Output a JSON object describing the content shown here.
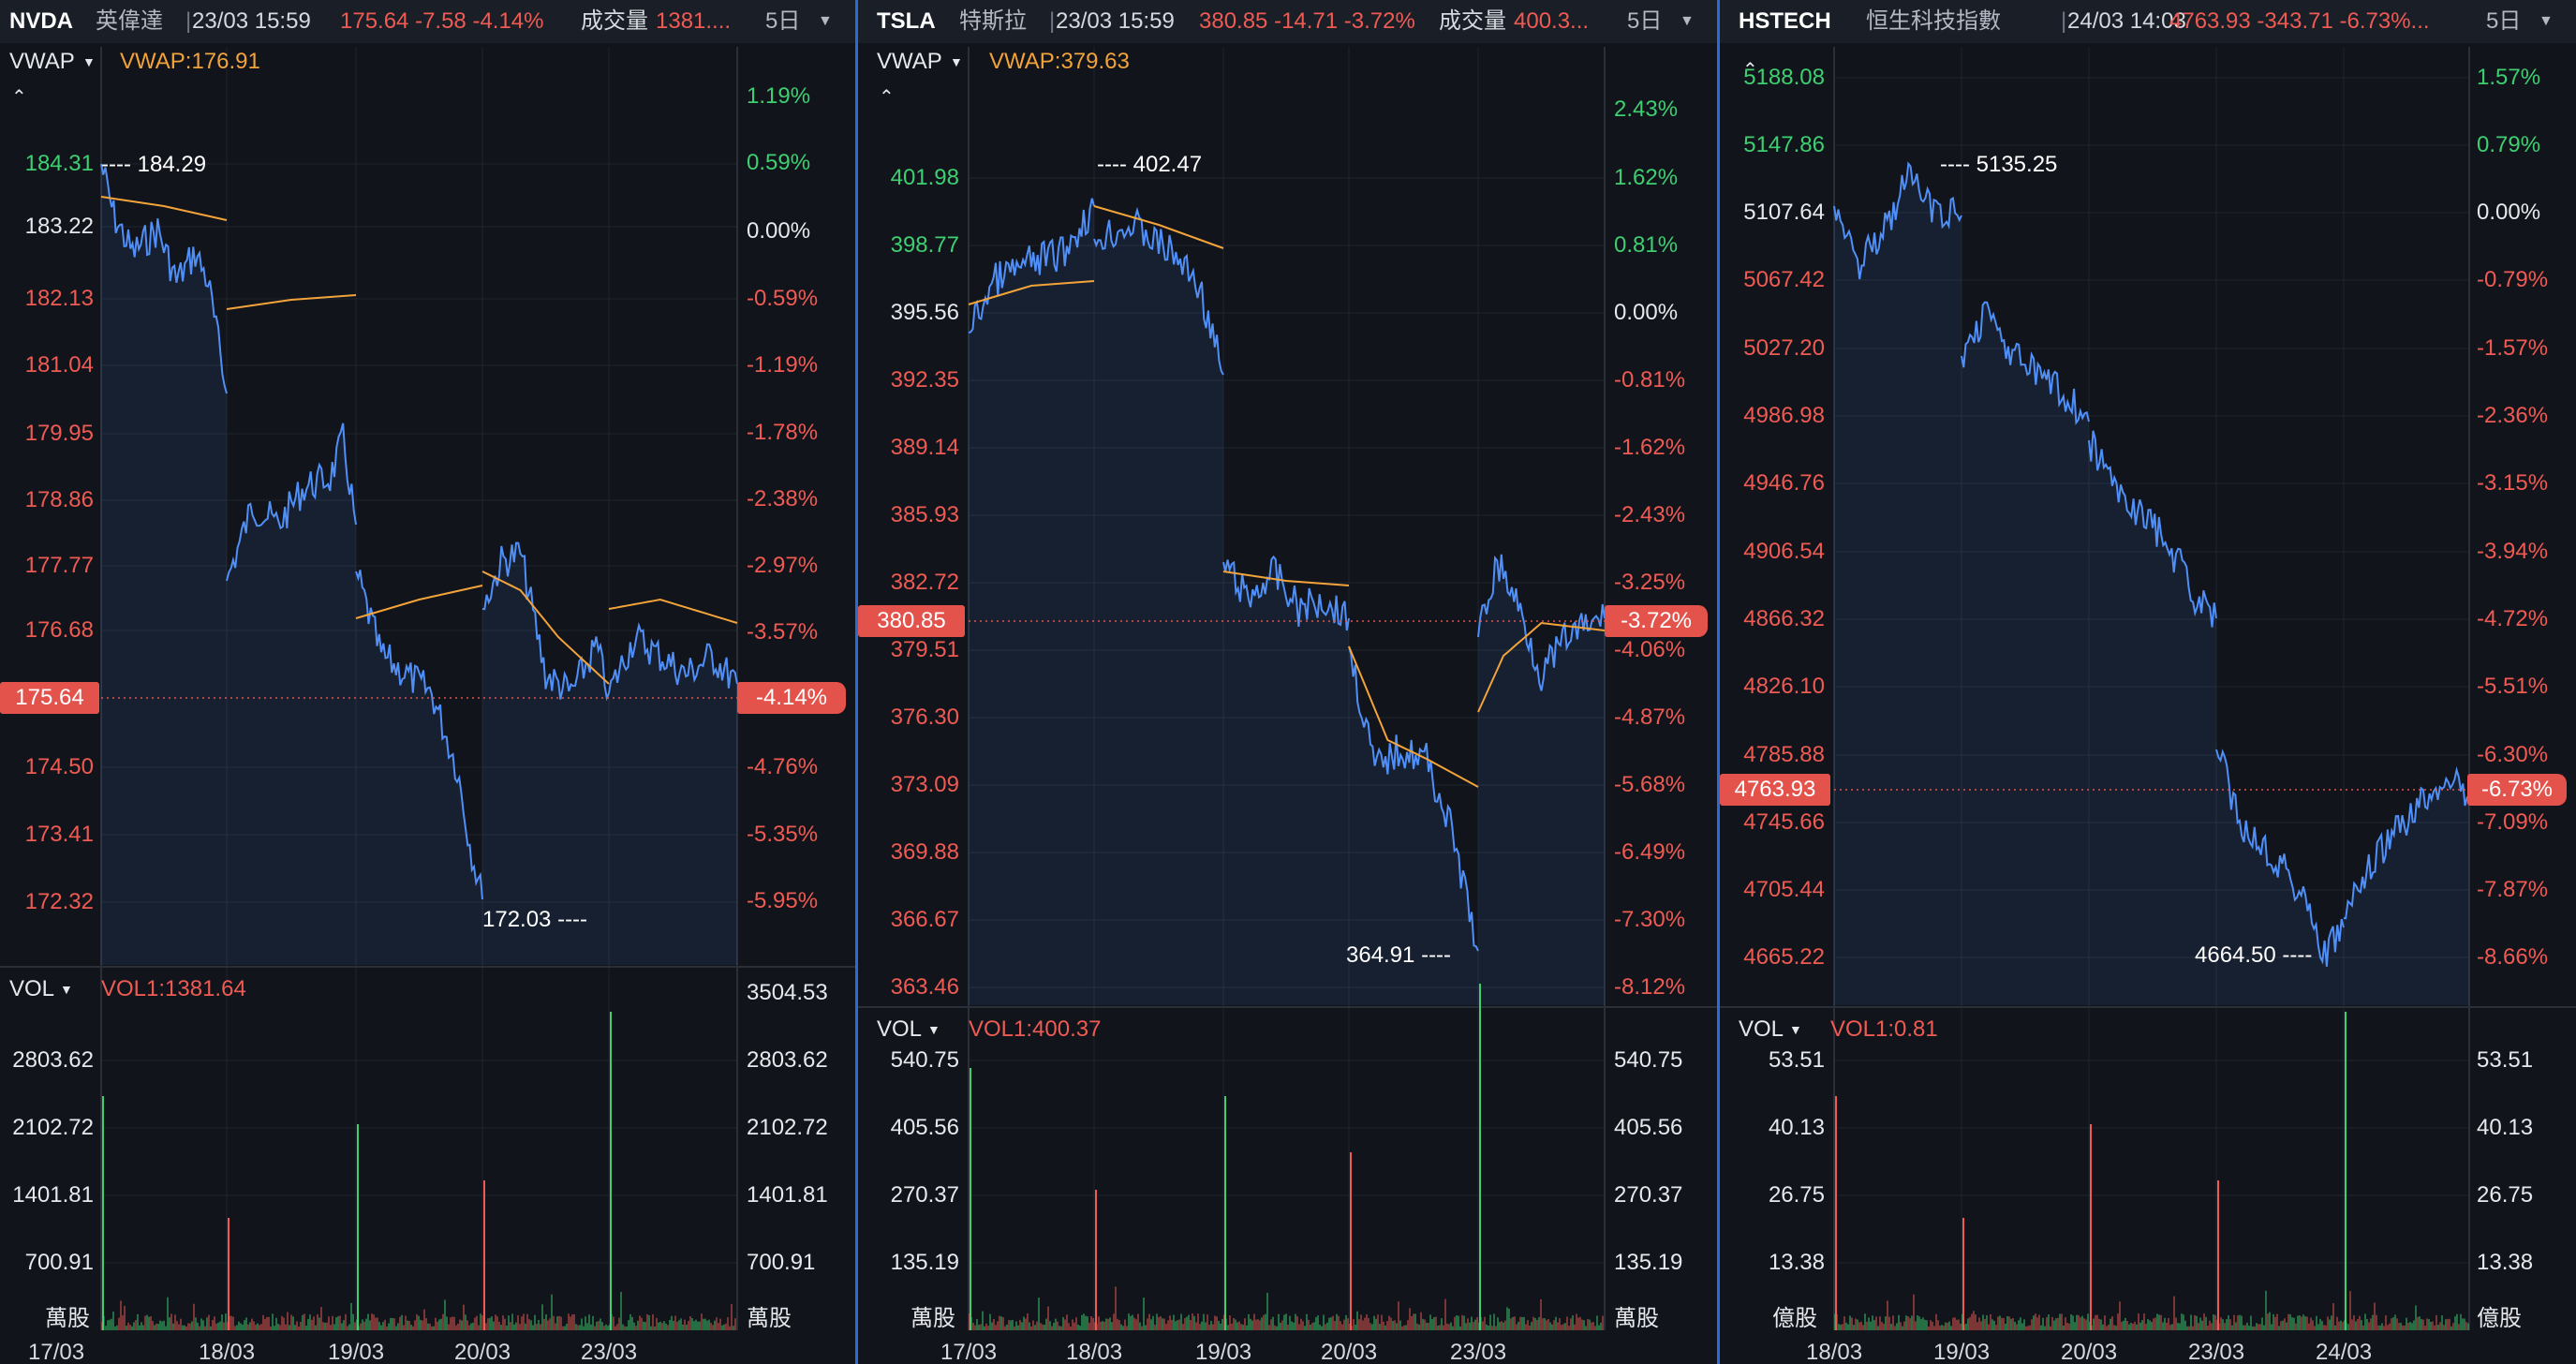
{
  "colors": {
    "up": "#3ecf71",
    "down": "#ef5b53",
    "neutral": "#e6e8ec",
    "price_line": "#4f8ff7",
    "vwap_line": "#f2a33a",
    "grid": "#20242d"
  },
  "panels": [
    {
      "id": "nvda",
      "header": {
        "symbol": "NVDA",
        "name": "英偉達",
        "separator": "|",
        "timestamp": "23/03 15:59",
        "change": "175.64 -7.58 -4.14%",
        "volume_label": "成交量",
        "volume_value": "1381....",
        "period": "5日",
        "dropdown_icon": "caret-down-icon"
      },
      "indicator": {
        "name": "VWAP",
        "value": "VWAP:176.91",
        "dropdown_icon": "caret-down-icon",
        "collapse_icon": "chevron-up-icon"
      },
      "price_ticks": [
        {
          "t": "184.31",
          "c": "up"
        },
        {
          "t": "183.22",
          "c": "neutral"
        },
        {
          "t": "182.13",
          "c": "down"
        },
        {
          "t": "181.04",
          "c": "down"
        },
        {
          "t": "179.95",
          "c": "down"
        },
        {
          "t": "178.86",
          "c": "down"
        },
        {
          "t": "177.77",
          "c": "down"
        },
        {
          "t": "176.68",
          "c": "down"
        },
        {
          "t": "174.50",
          "c": "down"
        },
        {
          "t": "173.41",
          "c": "down"
        },
        {
          "t": "172.32",
          "c": "down"
        }
      ],
      "pct_ticks": [
        {
          "t": "1.19%",
          "c": "up"
        },
        {
          "t": "0.59%",
          "c": "up"
        },
        {
          "t": "0.00%",
          "c": "neutral"
        },
        {
          "t": "-0.59%",
          "c": "down"
        },
        {
          "t": "-1.19%",
          "c": "down"
        },
        {
          "t": "-1.78%",
          "c": "down"
        },
        {
          "t": "-2.38%",
          "c": "down"
        },
        {
          "t": "-2.97%",
          "c": "down"
        },
        {
          "t": "-3.57%",
          "c": "down"
        },
        {
          "t": "-4.76%",
          "c": "down"
        },
        {
          "t": "-5.35%",
          "c": "down"
        },
        {
          "t": "-5.95%",
          "c": "down"
        }
      ],
      "current_price": "175.64",
      "current_pct": "-4.14%",
      "high_label": "184.29",
      "low_label": "172.03",
      "volume": {
        "name": "VOL",
        "value": "VOL1:1381.64",
        "dropdown_icon": "caret-down-icon",
        "left_ticks": [
          "2803.62",
          "2102.72",
          "1401.81",
          "700.91"
        ],
        "right_ticks": [
          "3504.53",
          "2803.62",
          "2102.72",
          "1401.81",
          "700.91"
        ],
        "unit": "萬股"
      },
      "dates": [
        "17/03",
        "18/03",
        "19/03",
        "20/03",
        "23/03"
      ]
    },
    {
      "id": "tsla",
      "header": {
        "symbol": "TSLA",
        "name": "特斯拉",
        "separator": "|",
        "timestamp": "23/03 15:59",
        "change": "380.85 -14.71 -3.72%",
        "volume_label": "成交量",
        "volume_value": "400.3...",
        "period": "5日",
        "dropdown_icon": "caret-down-icon"
      },
      "indicator": {
        "name": "VWAP",
        "value": "VWAP:379.63",
        "dropdown_icon": "caret-down-icon",
        "collapse_icon": "chevron-up-icon"
      },
      "price_ticks": [
        {
          "t": "401.98",
          "c": "up"
        },
        {
          "t": "398.77",
          "c": "up"
        },
        {
          "t": "395.56",
          "c": "neutral"
        },
        {
          "t": "392.35",
          "c": "down"
        },
        {
          "t": "389.14",
          "c": "down"
        },
        {
          "t": "385.93",
          "c": "down"
        },
        {
          "t": "382.72",
          "c": "down"
        },
        {
          "t": "379.51",
          "c": "down"
        },
        {
          "t": "376.30",
          "c": "down"
        },
        {
          "t": "373.09",
          "c": "down"
        },
        {
          "t": "369.88",
          "c": "down"
        },
        {
          "t": "366.67",
          "c": "down"
        },
        {
          "t": "363.46",
          "c": "down"
        }
      ],
      "pct_ticks": [
        {
          "t": "2.43%",
          "c": "up"
        },
        {
          "t": "1.62%",
          "c": "up"
        },
        {
          "t": "0.81%",
          "c": "up"
        },
        {
          "t": "0.00%",
          "c": "neutral"
        },
        {
          "t": "-0.81%",
          "c": "down"
        },
        {
          "t": "-1.62%",
          "c": "down"
        },
        {
          "t": "-2.43%",
          "c": "down"
        },
        {
          "t": "-3.25%",
          "c": "down"
        },
        {
          "t": "-4.06%",
          "c": "down"
        },
        {
          "t": "-4.87%",
          "c": "down"
        },
        {
          "t": "-5.68%",
          "c": "down"
        },
        {
          "t": "-6.49%",
          "c": "down"
        },
        {
          "t": "-7.30%",
          "c": "down"
        },
        {
          "t": "-8.12%",
          "c": "down"
        }
      ],
      "current_price": "380.85",
      "current_pct": "-3.72%",
      "high_label": "402.47",
      "low_label": "364.91",
      "volume": {
        "name": "VOL",
        "value": "VOL1:400.37",
        "dropdown_icon": "caret-down-icon",
        "left_ticks": [
          "540.75",
          "405.56",
          "270.37",
          "135.19"
        ],
        "right_ticks": [
          "540.75",
          "405.56",
          "270.37",
          "135.19"
        ],
        "unit": "萬股"
      },
      "dates": [
        "17/03",
        "18/03",
        "19/03",
        "20/03",
        "23/03"
      ]
    },
    {
      "id": "hstech",
      "header": {
        "symbol": "HSTECH",
        "name": "恒生科技指數",
        "separator": "|",
        "timestamp": "24/03 14:03",
        "change": "4763.93 -343.71 -6.73%...",
        "volume_label": "",
        "volume_value": "",
        "period": "5日",
        "dropdown_icon": "caret-down-icon"
      },
      "indicator": null,
      "price_ticks": [
        {
          "t": "5188.08",
          "c": "up"
        },
        {
          "t": "5147.86",
          "c": "up"
        },
        {
          "t": "5107.64",
          "c": "neutral"
        },
        {
          "t": "5067.42",
          "c": "down"
        },
        {
          "t": "5027.20",
          "c": "down"
        },
        {
          "t": "4986.98",
          "c": "down"
        },
        {
          "t": "4946.76",
          "c": "down"
        },
        {
          "t": "4906.54",
          "c": "down"
        },
        {
          "t": "4866.32",
          "c": "down"
        },
        {
          "t": "4826.10",
          "c": "down"
        },
        {
          "t": "4785.88",
          "c": "down"
        },
        {
          "t": "4745.66",
          "c": "down"
        },
        {
          "t": "4705.44",
          "c": "down"
        },
        {
          "t": "4665.22",
          "c": "down"
        }
      ],
      "pct_ticks": [
        {
          "t": "1.57%",
          "c": "up"
        },
        {
          "t": "0.79%",
          "c": "up"
        },
        {
          "t": "0.00%",
          "c": "neutral"
        },
        {
          "t": "-0.79%",
          "c": "down"
        },
        {
          "t": "-1.57%",
          "c": "down"
        },
        {
          "t": "-2.36%",
          "c": "down"
        },
        {
          "t": "-3.15%",
          "c": "down"
        },
        {
          "t": "-3.94%",
          "c": "down"
        },
        {
          "t": "-4.72%",
          "c": "down"
        },
        {
          "t": "-5.51%",
          "c": "down"
        },
        {
          "t": "-6.30%",
          "c": "down"
        },
        {
          "t": "-7.09%",
          "c": "down"
        },
        {
          "t": "-7.87%",
          "c": "down"
        },
        {
          "t": "-8.66%",
          "c": "down"
        }
      ],
      "current_price": "4763.93",
      "current_pct": "-6.73%",
      "high_label": "5135.25",
      "low_label": "4664.50",
      "volume": {
        "name": "VOL",
        "value": "VOL1:0.81",
        "dropdown_icon": "caret-down-icon",
        "left_ticks": [
          "53.51",
          "40.13",
          "26.75",
          "13.38"
        ],
        "right_ticks": [
          "53.51",
          "40.13",
          "26.75",
          "13.38"
        ],
        "unit": "億股"
      },
      "dates": [
        "18/03",
        "19/03",
        "20/03",
        "23/03",
        "24/03"
      ]
    }
  ]
}
